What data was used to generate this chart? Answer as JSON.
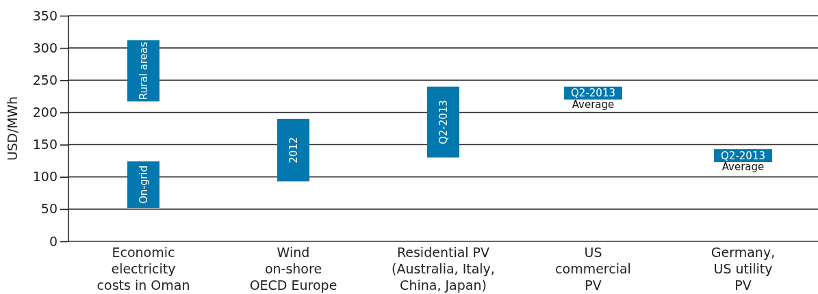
{
  "chart_data": {
    "type": "bar",
    "ylabel": "USD/MWh",
    "categories": [
      "Economic\nelectricity\ncosts in Oman",
      "Wind\non-shore\nOECD Europe",
      "Residential PV\n(Australia, Italy,\nChina, Japan)",
      "US\ncommercial\nPV",
      "Germany,\nUS utility\nPV"
    ],
    "series": [
      {
        "color": "#0378ae",
        "base": [
          52,
          93,
          130,
          220,
          123
        ],
        "values": [
          72,
          97,
          110,
          20,
          20
        ]
      },
      {
        "color": "#0378ae",
        "base": [
          217,
          null,
          null,
          null,
          null
        ],
        "values": [
          95,
          null,
          null,
          null,
          null
        ]
      }
    ],
    "ylim": [
      0,
      350
    ],
    "yticks": [
      0,
      50,
      100,
      150,
      200,
      250,
      300,
      350
    ],
    "grid": "y",
    "annotations": [
      {
        "text": "Rural areas",
        "x": "Economic\nelectricity\ncosts in Oman",
        "y": 312
      },
      {
        "text": "On-grid",
        "x": "Economic\nelectricity\ncosts in Oman",
        "y": 124
      },
      {
        "text": "2012",
        "x": "Wind\non-shore\nOECD Europe",
        "y": 190
      },
      {
        "text": "Q2-2013",
        "x": "Residential PV\n(Australia, Italy,\nChina, Japan)",
        "y": 240
      },
      {
        "text": "Q2-2013",
        "x": "US\ncommercial\nPV",
        "y": 240
      },
      {
        "text": "Average",
        "x": "US\ncommercial\nPV",
        "y": 220
      },
      {
        "text": "Q2-2013",
        "x": "Germany,\nUS utility\nPV",
        "y": 143
      },
      {
        "text": "Average",
        "x": "Germany,\nUS utility\nPV",
        "y": 123
      }
    ]
  }
}
